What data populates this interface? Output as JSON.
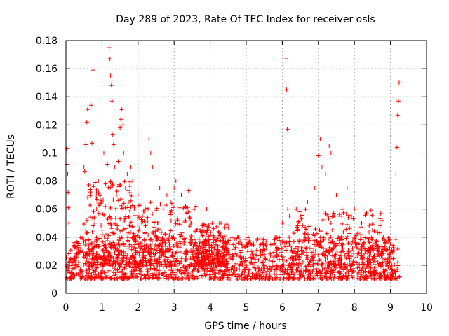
{
  "chart_data": {
    "type": "scatter",
    "title": "Day 289 of 2023, Rate Of TEC Index for receiver osls",
    "xlabel": "GPS time / hours",
    "ylabel": "ROTI / TECUs",
    "xlim": [
      0,
      10
    ],
    "ylim": [
      0,
      0.18
    ],
    "xticks": [
      "0",
      "1",
      "2",
      "3",
      "4",
      "5",
      "6",
      "7",
      "8",
      "9",
      "10"
    ],
    "yticks": [
      "0",
      "0.02",
      "0.04",
      "0.06",
      "0.08",
      "0.1",
      "0.12",
      "0.14",
      "0.16",
      "0.18"
    ],
    "grid": true,
    "marker": "+",
    "color": "#ff0000",
    "series": [
      {
        "name": "ROTI",
        "points": [
          [
            0.02,
            0.103
          ],
          [
            0.03,
            0.092
          ],
          [
            0.05,
            0.085
          ],
          [
            0.06,
            0.072
          ],
          [
            0.07,
            0.061
          ],
          [
            0.08,
            0.05
          ],
          [
            0.1,
            0.02
          ],
          [
            0.15,
            0.015
          ],
          [
            0.2,
            0.012
          ],
          [
            0.25,
            0.018
          ],
          [
            0.3,
            0.014
          ],
          [
            0.35,
            0.022
          ],
          [
            0.4,
            0.016
          ],
          [
            0.45,
            0.012
          ],
          [
            0.5,
            0.09
          ],
          [
            0.52,
            0.087
          ],
          [
            0.55,
            0.106
          ],
          [
            0.58,
            0.122
          ],
          [
            0.6,
            0.131
          ],
          [
            0.65,
            0.03
          ],
          [
            0.7,
            0.134
          ],
          [
            0.72,
            0.107
          ],
          [
            0.75,
            0.159
          ],
          [
            0.8,
            0.05
          ],
          [
            0.85,
            0.06
          ],
          [
            0.9,
            0.08
          ],
          [
            0.95,
            0.07
          ],
          [
            1.0,
            0.045
          ],
          [
            1.05,
            0.1
          ],
          [
            1.1,
            0.078
          ],
          [
            1.15,
            0.092
          ],
          [
            1.2,
            0.175
          ],
          [
            1.22,
            0.167
          ],
          [
            1.24,
            0.155
          ],
          [
            1.26,
            0.148
          ],
          [
            1.28,
            0.137
          ],
          [
            1.3,
            0.113
          ],
          [
            1.32,
            0.106
          ],
          [
            1.35,
            0.09
          ],
          [
            1.4,
            0.07
          ],
          [
            1.45,
            0.094
          ],
          [
            1.5,
            0.118
          ],
          [
            1.52,
            0.124
          ],
          [
            1.55,
            0.131
          ],
          [
            1.58,
            0.12
          ],
          [
            1.6,
            0.1
          ],
          [
            1.65,
            0.075
          ],
          [
            1.7,
            0.085
          ],
          [
            1.75,
            0.065
          ],
          [
            1.8,
            0.09
          ],
          [
            1.85,
            0.08
          ],
          [
            1.9,
            0.06
          ],
          [
            2.0,
            0.07
          ],
          [
            2.1,
            0.05
          ],
          [
            2.2,
            0.06
          ],
          [
            2.3,
            0.11
          ],
          [
            2.35,
            0.1
          ],
          [
            2.4,
            0.09
          ],
          [
            2.5,
            0.085
          ],
          [
            2.6,
            0.075
          ],
          [
            2.7,
            0.06
          ],
          [
            2.8,
            0.07
          ],
          [
            2.9,
            0.065
          ],
          [
            3.0,
            0.075
          ],
          [
            3.05,
            0.08
          ],
          [
            3.2,
            0.07
          ],
          [
            3.4,
            0.073
          ],
          [
            3.6,
            0.062
          ],
          [
            3.8,
            0.05
          ],
          [
            3.9,
            0.06
          ],
          [
            4.1,
            0.04
          ],
          [
            4.3,
            0.05
          ],
          [
            4.6,
            0.035
          ],
          [
            5.0,
            0.035
          ],
          [
            5.4,
            0.03
          ],
          [
            5.8,
            0.04
          ],
          [
            6.0,
            0.05
          ],
          [
            6.1,
            0.167
          ],
          [
            6.12,
            0.145
          ],
          [
            6.14,
            0.117
          ],
          [
            6.15,
            0.06
          ],
          [
            6.2,
            0.055
          ],
          [
            6.5,
            0.055
          ],
          [
            6.7,
            0.065
          ],
          [
            6.9,
            0.075
          ],
          [
            7.0,
            0.098
          ],
          [
            7.05,
            0.11
          ],
          [
            7.1,
            0.09
          ],
          [
            7.2,
            0.085
          ],
          [
            7.3,
            0.105
          ],
          [
            7.35,
            0.1
          ],
          [
            7.5,
            0.07
          ],
          [
            7.8,
            0.075
          ],
          [
            8.0,
            0.06
          ],
          [
            8.2,
            0.05
          ],
          [
            8.5,
            0.045
          ],
          [
            8.8,
            0.04
          ],
          [
            9.0,
            0.035
          ],
          [
            9.15,
            0.085
          ],
          [
            9.18,
            0.104
          ],
          [
            9.2,
            0.127
          ],
          [
            9.22,
            0.137
          ],
          [
            9.24,
            0.15
          ]
        ],
        "baseline": {
          "x_range": [
            0,
            9.25
          ],
          "typical_range": [
            0.005,
            0.035
          ]
        }
      }
    ]
  }
}
